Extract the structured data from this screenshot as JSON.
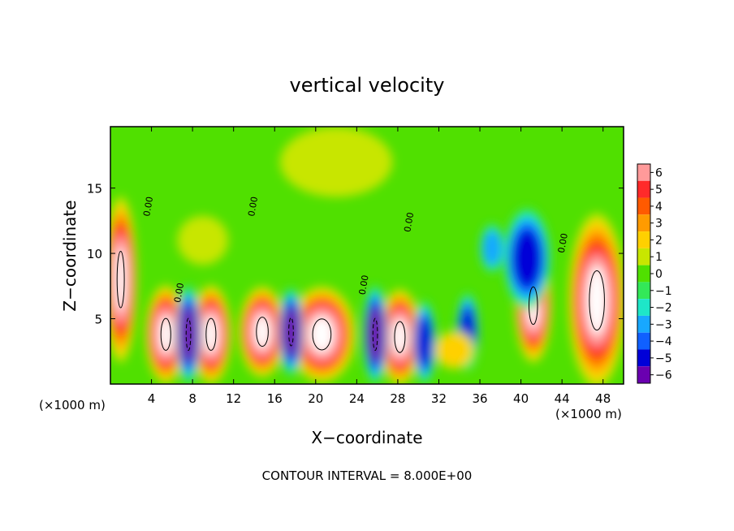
{
  "chart_data": {
    "type": "heatmap",
    "title": "vertical velocity",
    "xlabel": "X−coordinate",
    "ylabel": "Z−coordinate",
    "x_unit_left": "(×1000 m)",
    "x_unit_right": "(×1000 m)",
    "footer": "CONTOUR INTERVAL = 8.000E+00",
    "xlim": [
      0,
      50
    ],
    "ylim": [
      0,
      19.7
    ],
    "x_ticks": [
      4,
      8,
      12,
      16,
      20,
      24,
      28,
      32,
      36,
      40,
      44,
      48
    ],
    "y_ticks": [
      5,
      10,
      15
    ],
    "colorbar": {
      "labels": [
        "6",
        "5",
        "4",
        "3",
        "2",
        "1",
        "0",
        "−1",
        "−2",
        "−3",
        "−4",
        "−5",
        "−6"
      ],
      "colors": [
        "#ff9a9a",
        "#ff2a2a",
        "#ff5a00",
        "#ff9b00",
        "#ffd000",
        "#c8e600",
        "#50e000",
        "#33e858",
        "#1ee6c8",
        "#18a8ff",
        "#1060ff",
        "#0000d8",
        "#6a00b0"
      ]
    },
    "contour_label": "0.00",
    "features": [
      {
        "x": 1.0,
        "z": 8.0,
        "w": 2.2,
        "h": 12.0,
        "value": 6
      },
      {
        "x": 5.4,
        "z": 3.8,
        "w": 3.0,
        "h": 6.8,
        "value": 6
      },
      {
        "x": 9.8,
        "z": 3.8,
        "w": 3.0,
        "h": 6.8,
        "value": 6
      },
      {
        "x": 14.8,
        "z": 4.0,
        "w": 3.6,
        "h": 6.2,
        "value": 6
      },
      {
        "x": 20.6,
        "z": 3.8,
        "w": 5.6,
        "h": 6.6,
        "value": 6
      },
      {
        "x": 28.2,
        "z": 3.6,
        "w": 3.2,
        "h": 6.6,
        "value": 6
      },
      {
        "x": 41.2,
        "z": 6.0,
        "w": 2.6,
        "h": 8.0,
        "value": 6
      },
      {
        "x": 47.4,
        "z": 6.4,
        "w": 4.6,
        "h": 12.6,
        "value": 6
      },
      {
        "x": 7.6,
        "z": 3.8,
        "w": 1.4,
        "h": 6.8,
        "value": -6
      },
      {
        "x": 17.6,
        "z": 4.0,
        "w": 1.4,
        "h": 6.0,
        "value": -6
      },
      {
        "x": 25.8,
        "z": 3.8,
        "w": 1.4,
        "h": 6.8,
        "value": -6
      },
      {
        "x": 30.6,
        "z": 3.2,
        "w": 1.2,
        "h": 5.6,
        "value": -5
      },
      {
        "x": 34.8,
        "z": 4.0,
        "w": 1.2,
        "h": 5.2,
        "value": -5
      },
      {
        "x": 40.6,
        "z": 9.6,
        "w": 3.6,
        "h": 7.0,
        "value": -5
      },
      {
        "x": 37.2,
        "z": 10.4,
        "w": 1.4,
        "h": 3.0,
        "value": -3
      },
      {
        "x": 22.0,
        "z": 17.0,
        "w": 10.0,
        "h": 4.6,
        "value": 1
      },
      {
        "x": 9.0,
        "z": 11.0,
        "w": 4.0,
        "h": 3.0,
        "value": 1
      },
      {
        "x": 33.5,
        "z": 2.6,
        "w": 3.0,
        "h": 2.2,
        "value": 2
      }
    ]
  }
}
